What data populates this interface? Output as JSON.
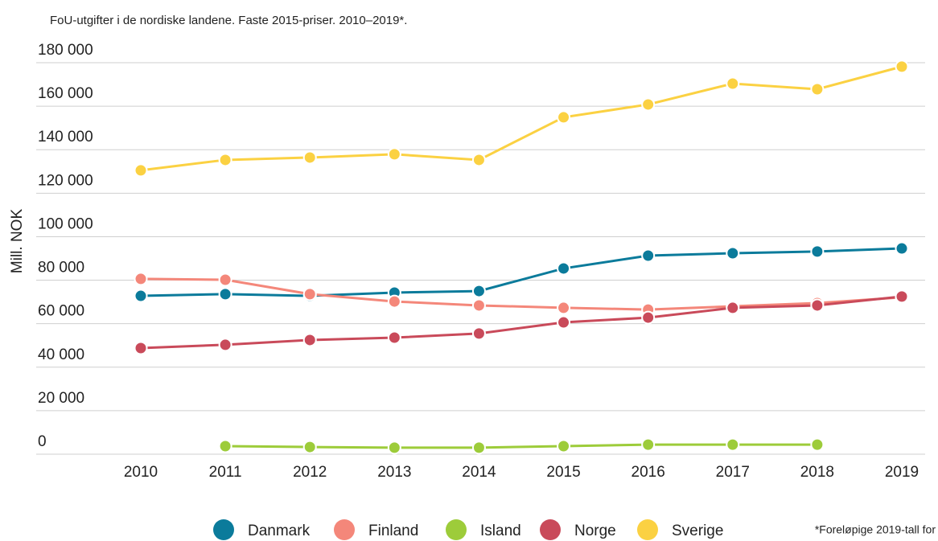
{
  "chart_data": {
    "type": "line",
    "title": "FoU-utgifter i de nordiske landene. Faste 2015-priser. 2010–2019*.",
    "y_label": "Mill. NOK",
    "footnote": "*Foreløpige 2019-tall for",
    "categories": [
      "2010",
      "2011",
      "2012",
      "2013",
      "2014",
      "2015",
      "2016",
      "2017",
      "2018",
      "2019"
    ],
    "ylim": [
      0,
      180000
    ],
    "yticks": [
      0,
      {
        "value": 20000,
        "label": "20 000"
      },
      {
        "value": 40000,
        "label": "40 000"
      },
      {
        "value": 60000,
        "label": "60 000"
      },
      {
        "value": 80000,
        "label": "80 000"
      },
      {
        "value": 100000,
        "label": "100 000"
      },
      {
        "value": 120000,
        "label": "120 000"
      },
      {
        "value": 140000,
        "label": "140 000"
      },
      {
        "value": 160000,
        "label": "160 000"
      },
      {
        "value": 180000,
        "label": "180 000"
      }
    ],
    "grid": true,
    "legend": "bottom",
    "series": [
      {
        "name": "Danmark",
        "color": "#0b7b9b",
        "values": [
          72800,
          73600,
          72800,
          74300,
          75000,
          85400,
          91300,
          92400,
          93200,
          94600
        ]
      },
      {
        "name": "Finland",
        "color": "#f4877a",
        "values": [
          80600,
          80200,
          73600,
          70200,
          68400,
          67300,
          66500,
          68000,
          69500,
          72100
        ]
      },
      {
        "name": "Island",
        "color": "#9dcc3a",
        "values": [
          null,
          3700,
          3300,
          3000,
          3000,
          3700,
          4400,
          4400,
          4400,
          null
        ]
      },
      {
        "name": "Norge",
        "color": "#c94a5a",
        "values": [
          48800,
          50300,
          52500,
          53600,
          55500,
          60600,
          62800,
          67300,
          68400,
          72500
        ]
      },
      {
        "name": "Sverige",
        "color": "#fbd142",
        "values": [
          130500,
          135300,
          136400,
          137900,
          135300,
          154900,
          160800,
          170400,
          167800,
          178200
        ]
      }
    ]
  }
}
